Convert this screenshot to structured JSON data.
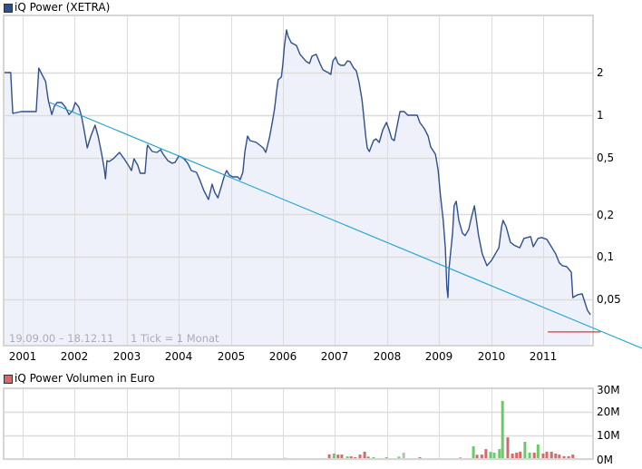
{
  "price_legend": {
    "label": "iQ Power (XETRA)",
    "color": "#2f4f8f"
  },
  "volume_legend": {
    "label": "iQ Power Volumen in Euro",
    "color": "#d46a6a"
  },
  "footer": {
    "date_range": "19.09.00 – 18.12.11",
    "tick_info": "1 Tick = 1 Monat"
  },
  "colors": {
    "price_line": "#2f4f8f",
    "price_fill": "#eef1fa",
    "grid": "#dcdcdc",
    "border": "#d6d6d6",
    "trendline": "#1aa0d8",
    "support_line": "#d63a3a",
    "volume_up": "#66cc66",
    "volume_down": "#d26a6a",
    "volume_neutral": "#bdbdbd"
  },
  "chart_data": [
    {
      "type": "line",
      "title": "iQ Power (XETRA)",
      "yscale": "log",
      "xlabel": "",
      "ylabel": "",
      "x_tick_labels": [
        "2001",
        "2002",
        "2003",
        "2004",
        "2005",
        "2006",
        "2007",
        "2008",
        "2009",
        "2010",
        "2011"
      ],
      "x_ticks": [
        2001,
        2002,
        2003,
        2004,
        2005,
        2006,
        2007,
        2008,
        2009,
        2010,
        2011
      ],
      "y_tick_labels": [
        "2",
        "1",
        "0,5",
        "0,2",
        "0,1",
        "0,05"
      ],
      "y_ticks": [
        2,
        1,
        0.5,
        0.2,
        0.1,
        0.05
      ],
      "date_range": "19.09.00 – 18.12.11",
      "grid": true,
      "legend_position": "top-left",
      "series": [
        {
          "name": "iQ Power (XETRA)",
          "points": [
            [
              2000.63,
              2.0
            ],
            [
              2000.77,
              2.0
            ],
            [
              2000.81,
              1.03
            ],
            [
              2000.97,
              1.06
            ],
            [
              2001.26,
              1.06
            ],
            [
              2001.31,
              2.15
            ],
            [
              2001.38,
              1.91
            ],
            [
              2001.44,
              1.73
            ],
            [
              2001.49,
              1.29
            ],
            [
              2001.56,
              1.01
            ],
            [
              2001.61,
              1.16
            ],
            [
              2001.66,
              1.23
            ],
            [
              2001.75,
              1.23
            ],
            [
              2001.82,
              1.14
            ],
            [
              2001.89,
              1.01
            ],
            [
              2001.96,
              1.08
            ],
            [
              2002.01,
              1.23
            ],
            [
              2002.08,
              1.14
            ],
            [
              2002.13,
              0.985
            ],
            [
              2002.18,
              0.79
            ],
            [
              2002.24,
              0.588
            ],
            [
              2002.31,
              0.712
            ],
            [
              2002.39,
              0.85
            ],
            [
              2002.45,
              0.712
            ],
            [
              2002.52,
              0.53
            ],
            [
              2002.57,
              0.413
            ],
            [
              2002.59,
              0.356
            ],
            [
              2002.62,
              0.478
            ],
            [
              2002.66,
              0.471
            ],
            [
              2002.74,
              0.493
            ],
            [
              2002.86,
              0.546
            ],
            [
              2002.95,
              0.493
            ],
            [
              2003.04,
              0.438
            ],
            [
              2003.09,
              0.407
            ],
            [
              2003.14,
              0.493
            ],
            [
              2003.21,
              0.444
            ],
            [
              2003.26,
              0.389
            ],
            [
              2003.35,
              0.389
            ],
            [
              2003.39,
              0.588
            ],
            [
              2003.4,
              0.615
            ],
            [
              2003.49,
              0.554
            ],
            [
              2003.58,
              0.546
            ],
            [
              2003.65,
              0.571
            ],
            [
              2003.7,
              0.53
            ],
            [
              2003.79,
              0.478
            ],
            [
              2003.87,
              0.458
            ],
            [
              2003.93,
              0.465
            ],
            [
              2004.0,
              0.515
            ],
            [
              2004.05,
              0.507
            ],
            [
              2004.1,
              0.493
            ],
            [
              2004.17,
              0.458
            ],
            [
              2004.24,
              0.407
            ],
            [
              2004.34,
              0.395
            ],
            [
              2004.4,
              0.351
            ],
            [
              2004.48,
              0.294
            ],
            [
              2004.57,
              0.254
            ],
            [
              2004.64,
              0.326
            ],
            [
              2004.69,
              0.285
            ],
            [
              2004.75,
              0.261
            ],
            [
              2004.83,
              0.326
            ],
            [
              2004.88,
              0.378
            ],
            [
              2004.92,
              0.407
            ],
            [
              2004.97,
              0.378
            ],
            [
              2005.04,
              0.367
            ],
            [
              2005.13,
              0.367
            ],
            [
              2005.18,
              0.351
            ],
            [
              2005.23,
              0.395
            ],
            [
              2005.27,
              0.554
            ],
            [
              2005.32,
              0.712
            ],
            [
              2005.37,
              0.662
            ],
            [
              2005.49,
              0.642
            ],
            [
              2005.62,
              0.588
            ],
            [
              2005.67,
              0.546
            ],
            [
              2005.74,
              0.691
            ],
            [
              2005.79,
              0.863
            ],
            [
              2005.84,
              1.11
            ],
            [
              2005.88,
              1.49
            ],
            [
              2005.91,
              1.78
            ],
            [
              2005.97,
              1.86
            ],
            [
              2006.0,
              2.32
            ],
            [
              2006.03,
              3.11
            ],
            [
              2006.07,
              4.0
            ],
            [
              2006.1,
              3.61
            ],
            [
              2006.16,
              3.25
            ],
            [
              2006.26,
              3.11
            ],
            [
              2006.33,
              2.69
            ],
            [
              2006.45,
              2.39
            ],
            [
              2006.51,
              2.32
            ],
            [
              2006.56,
              2.61
            ],
            [
              2006.64,
              2.69
            ],
            [
              2006.71,
              2.32
            ],
            [
              2006.77,
              2.09
            ],
            [
              2006.87,
              2.0
            ],
            [
              2006.92,
              1.94
            ],
            [
              2006.96,
              2.42
            ],
            [
              2007.01,
              2.57
            ],
            [
              2007.06,
              2.32
            ],
            [
              2007.11,
              2.25
            ],
            [
              2007.18,
              2.25
            ],
            [
              2007.24,
              2.42
            ],
            [
              2007.29,
              2.39
            ],
            [
              2007.36,
              2.15
            ],
            [
              2007.41,
              2.06
            ],
            [
              2007.46,
              1.73
            ],
            [
              2007.52,
              1.29
            ],
            [
              2007.55,
              1.0
            ],
            [
              2007.59,
              0.712
            ],
            [
              2007.62,
              0.588
            ],
            [
              2007.66,
              0.554
            ],
            [
              2007.74,
              0.662
            ],
            [
              2007.79,
              0.681
            ],
            [
              2007.85,
              0.642
            ],
            [
              2007.92,
              0.79
            ],
            [
              2007.99,
              0.889
            ],
            [
              2008.04,
              0.79
            ],
            [
              2008.09,
              0.681
            ],
            [
              2008.14,
              0.662
            ],
            [
              2008.18,
              0.79
            ],
            [
              2008.25,
              1.06
            ],
            [
              2008.33,
              1.06
            ],
            [
              2008.4,
              1.0
            ],
            [
              2008.58,
              1.0
            ],
            [
              2008.63,
              0.889
            ],
            [
              2008.72,
              0.802
            ],
            [
              2008.79,
              0.712
            ],
            [
              2008.84,
              0.597
            ],
            [
              2008.93,
              0.53
            ],
            [
              2008.98,
              0.413
            ],
            [
              2009.03,
              0.265
            ],
            [
              2009.08,
              0.181
            ],
            [
              2009.12,
              0.116
            ],
            [
              2009.15,
              0.0608
            ],
            [
              2009.17,
              0.0516
            ],
            [
              2009.19,
              0.0817
            ],
            [
              2009.22,
              0.105
            ],
            [
              2009.26,
              0.147
            ],
            [
              2009.29,
              0.229
            ],
            [
              2009.33,
              0.247
            ],
            [
              2009.38,
              0.181
            ],
            [
              2009.45,
              0.147
            ],
            [
              2009.5,
              0.141
            ],
            [
              2009.57,
              0.156
            ],
            [
              2009.62,
              0.189
            ],
            [
              2009.68,
              0.229
            ],
            [
              2009.71,
              0.189
            ],
            [
              2009.76,
              0.141
            ],
            [
              2009.83,
              0.105
            ],
            [
              2009.92,
              0.0866
            ],
            [
              2010.01,
              0.0947
            ],
            [
              2010.15,
              0.116
            ],
            [
              2010.2,
              0.163
            ],
            [
              2010.23,
              0.181
            ],
            [
              2010.29,
              0.163
            ],
            [
              2010.37,
              0.127
            ],
            [
              2010.44,
              0.121
            ],
            [
              2010.55,
              0.116
            ],
            [
              2010.63,
              0.135
            ],
            [
              2010.76,
              0.139
            ],
            [
              2010.81,
              0.118
            ],
            [
              2010.9,
              0.135
            ],
            [
              2010.97,
              0.137
            ],
            [
              2011.07,
              0.133
            ],
            [
              2011.14,
              0.121
            ],
            [
              2011.24,
              0.105
            ],
            [
              2011.31,
              0.0906
            ],
            [
              2011.37,
              0.0866
            ],
            [
              2011.45,
              0.0854
            ],
            [
              2011.54,
              0.0781
            ],
            [
              2011.56,
              0.0608
            ],
            [
              2011.57,
              0.0516
            ],
            [
              2011.66,
              0.054
            ],
            [
              2011.75,
              0.0548
            ],
            [
              2011.8,
              0.048
            ],
            [
              2011.85,
              0.042
            ],
            [
              2011.91,
              0.039
            ]
          ]
        }
      ],
      "trendline": {
        "start": [
          2001.52,
          1.23
        ],
        "end": [
          2012.9,
          0.0226
        ]
      },
      "support_line": {
        "start": [
          2011.09,
          0.0295
        ],
        "end": [
          2012.1,
          0.0295
        ]
      }
    },
    {
      "type": "bar",
      "title": "iQ Power Volumen in Euro",
      "xlabel": "",
      "ylabel": "",
      "unit": "Mio. EUR",
      "y_tick_labels": [
        "30M",
        "20M",
        "10M",
        "0M"
      ],
      "y_ticks": [
        30,
        20,
        10,
        0
      ],
      "ylim": [
        0,
        30
      ],
      "grid": true,
      "bars": [
        [
          2006.05,
          0.5,
          "up"
        ],
        [
          2006.71,
          0.3,
          "down"
        ],
        [
          2006.8,
          0.3,
          "down"
        ],
        [
          2006.89,
          2.0,
          "down"
        ],
        [
          2006.98,
          2.3,
          "up"
        ],
        [
          2007.06,
          1.9,
          "down"
        ],
        [
          2007.13,
          1.9,
          "down"
        ],
        [
          2007.24,
          1.1,
          "up"
        ],
        [
          2007.31,
          1.1,
          "down"
        ],
        [
          2007.39,
          0.8,
          "down"
        ],
        [
          2007.48,
          1.9,
          "down"
        ],
        [
          2007.57,
          3.1,
          "down"
        ],
        [
          2007.64,
          1.0,
          "down"
        ],
        [
          2007.74,
          0.8,
          "up"
        ],
        [
          2007.9,
          0.4,
          "up"
        ],
        [
          2007.99,
          0.8,
          "up"
        ],
        [
          2008.07,
          0.4,
          "down"
        ],
        [
          2008.23,
          1.0,
          "up"
        ],
        [
          2008.32,
          2.7,
          "neutral"
        ],
        [
          2008.39,
          0.4,
          "down"
        ],
        [
          2008.63,
          0.8,
          "down"
        ],
        [
          2008.74,
          0.4,
          "down"
        ],
        [
          2008.91,
          0.4,
          "down"
        ],
        [
          2009.15,
          0.3,
          "down"
        ],
        [
          2009.22,
          0.4,
          "up"
        ],
        [
          2009.31,
          0.4,
          "up"
        ],
        [
          2009.41,
          0.6,
          "down"
        ],
        [
          2009.48,
          0.4,
          "down"
        ],
        [
          2009.57,
          0.4,
          "up"
        ],
        [
          2009.66,
          5.4,
          "up"
        ],
        [
          2009.73,
          1.8,
          "down"
        ],
        [
          2009.82,
          1.9,
          "down"
        ],
        [
          2009.9,
          4.2,
          "down"
        ],
        [
          2009.99,
          3.0,
          "up"
        ],
        [
          2010.06,
          2.7,
          "up"
        ],
        [
          2010.16,
          4.2,
          "up"
        ],
        [
          2010.22,
          24.6,
          "up"
        ],
        [
          2010.32,
          9.2,
          "down"
        ],
        [
          2010.41,
          2.3,
          "down"
        ],
        [
          2010.49,
          2.7,
          "down"
        ],
        [
          2010.56,
          3.1,
          "down"
        ],
        [
          2010.65,
          7.3,
          "up"
        ],
        [
          2010.74,
          2.7,
          "up"
        ],
        [
          2010.83,
          2.7,
          "down"
        ],
        [
          2010.9,
          6.2,
          "up"
        ],
        [
          2011.0,
          2.3,
          "down"
        ],
        [
          2011.07,
          3.1,
          "down"
        ],
        [
          2011.16,
          3.1,
          "down"
        ],
        [
          2011.24,
          2.3,
          "down"
        ],
        [
          2011.31,
          1.9,
          "down"
        ],
        [
          2011.4,
          1.2,
          "down"
        ],
        [
          2011.49,
          1.2,
          "down"
        ],
        [
          2011.57,
          1.9,
          "down"
        ],
        [
          2011.65,
          0.4,
          "up"
        ],
        [
          2011.73,
          0.4,
          "neutral"
        ],
        [
          2011.8,
          0.4,
          "down"
        ]
      ]
    }
  ]
}
